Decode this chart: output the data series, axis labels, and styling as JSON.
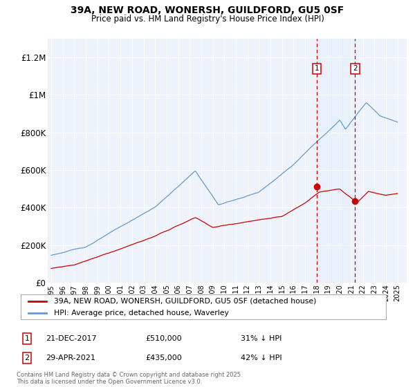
{
  "title": "39A, NEW ROAD, WONERSH, GUILDFORD, GU5 0SF",
  "subtitle": "Price paid vs. HM Land Registry's House Price Index (HPI)",
  "footer": "Contains HM Land Registry data © Crown copyright and database right 2025.\nThis data is licensed under the Open Government Licence v3.0.",
  "red_label": "39A, NEW ROAD, WONERSH, GUILDFORD, GU5 0SF (detached house)",
  "blue_label": "HPI: Average price, detached house, Waverley",
  "ann1": {
    "label": "1",
    "date": "21-DEC-2017",
    "price": "£510,000",
    "pct": "31% ↓ HPI"
  },
  "ann2": {
    "label": "2",
    "date": "29-APR-2021",
    "price": "£435,000",
    "pct": "42% ↓ HPI"
  },
  "ylim": [
    0,
    1300000
  ],
  "yticks": [
    0,
    200000,
    400000,
    600000,
    800000,
    1000000,
    1200000
  ],
  "ytick_labels": [
    "£0",
    "£200K",
    "£400K",
    "£600K",
    "£800K",
    "£1M",
    "£1.2M"
  ],
  "marker1_x": 2018.0,
  "marker2_x": 2021.33,
  "marker1_y": 510000,
  "marker2_y": 435000,
  "red_color": "#cc0000",
  "blue_color": "#6699cc",
  "shade_color": "#ddeeff",
  "background_color": "#eef2fb",
  "grid_color": "#ffffff",
  "xlim_left": 1994.7,
  "xlim_right": 2025.8
}
